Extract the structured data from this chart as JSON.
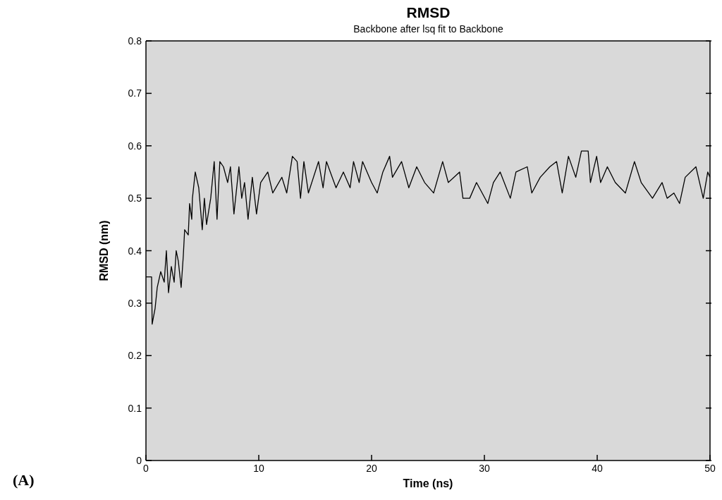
{
  "chart_data": {
    "type": "line",
    "title": "RMSD",
    "subtitle": "Backbone after lsq fit to Backbone",
    "xlabel": "Time (ns)",
    "ylabel": "RMSD (nm)",
    "annotations": [
      "(A)"
    ],
    "xlim": [
      0,
      50
    ],
    "xticks": [
      0,
      10,
      20,
      30,
      40,
      50
    ],
    "ylim": [
      0,
      0.8
    ],
    "yticks": [
      0,
      0.1,
      0.2,
      0.3,
      0.4,
      0.5,
      0.6,
      0.7,
      0.8
    ],
    "grid": false,
    "legend": false,
    "marker": "none",
    "line_style": "solid",
    "series": [
      {
        "color": "#000000",
        "x": [
          0,
          0.3,
          0.5,
          0.55,
          0.81,
          1.0,
          1.31,
          1.62,
          1.81,
          2.0,
          2.25,
          2.5,
          2.68,
          2.87,
          3.12,
          3.31,
          3.43,
          3.75,
          3.87,
          4.06,
          4.12,
          4.37,
          4.68,
          4.99,
          5.18,
          5.37,
          5.74,
          6.05,
          6.3,
          6.55,
          6.87,
          7.24,
          7.49,
          7.8,
          8.24,
          8.49,
          8.74,
          9.05,
          9.43,
          9.8,
          10.17,
          10.8,
          11.24,
          12.05,
          12.48,
          12.98,
          13.4,
          13.7,
          14.0,
          14.4,
          15.3,
          15.7,
          16.0,
          16.85,
          17.5,
          18.1,
          18.4,
          18.9,
          19.2,
          20.0,
          20.5,
          21.0,
          21.6,
          21.85,
          22.66,
          23.3,
          24.0,
          24.7,
          25.5,
          26.3,
          26.8,
          27.8,
          28.1,
          28.7,
          29.3,
          30.3,
          30.8,
          31.4,
          32.3,
          32.8,
          33.8,
          34.2,
          34.95,
          35.8,
          36.4,
          36.9,
          37.45,
          38.1,
          38.6,
          39.2,
          39.4,
          39.95,
          40.3,
          40.9,
          41.6,
          42.5,
          43.3,
          43.9,
          44.9,
          45.75,
          46.2,
          46.8,
          47.3,
          47.8,
          48.75,
          49.4,
          49.8,
          50
        ],
        "values": [
          0.35,
          0.35,
          0.35,
          0.26,
          0.29,
          0.33,
          0.36,
          0.34,
          0.4,
          0.32,
          0.37,
          0.34,
          0.4,
          0.38,
          0.33,
          0.39,
          0.44,
          0.43,
          0.49,
          0.46,
          0.5,
          0.55,
          0.52,
          0.44,
          0.5,
          0.45,
          0.5,
          0.57,
          0.46,
          0.57,
          0.56,
          0.53,
          0.56,
          0.47,
          0.56,
          0.5,
          0.53,
          0.46,
          0.54,
          0.47,
          0.53,
          0.55,
          0.51,
          0.54,
          0.51,
          0.58,
          0.57,
          0.5,
          0.57,
          0.51,
          0.57,
          0.52,
          0.57,
          0.52,
          0.55,
          0.52,
          0.57,
          0.53,
          0.57,
          0.53,
          0.51,
          0.55,
          0.58,
          0.54,
          0.57,
          0.52,
          0.56,
          0.53,
          0.51,
          0.57,
          0.53,
          0.55,
          0.5,
          0.5,
          0.53,
          0.49,
          0.53,
          0.55,
          0.5,
          0.55,
          0.56,
          0.51,
          0.54,
          0.56,
          0.57,
          0.51,
          0.58,
          0.54,
          0.59,
          0.59,
          0.53,
          0.58,
          0.53,
          0.56,
          0.53,
          0.51,
          0.57,
          0.53,
          0.5,
          0.53,
          0.5,
          0.51,
          0.49,
          0.54,
          0.56,
          0.5,
          0.55,
          0.54
        ]
      }
    ]
  }
}
